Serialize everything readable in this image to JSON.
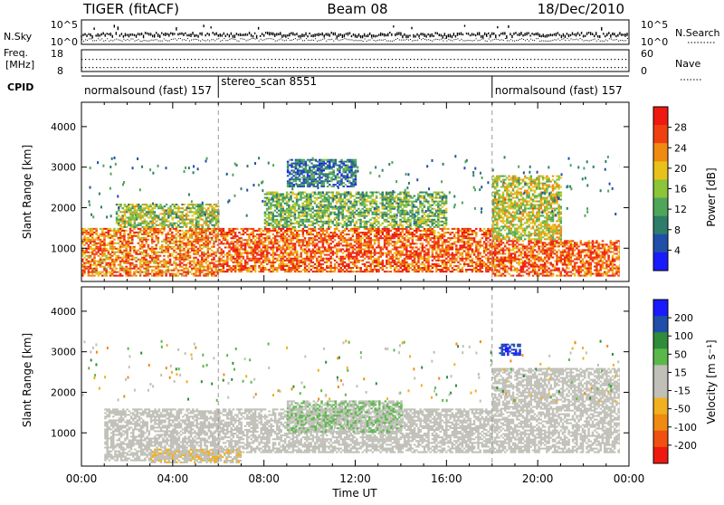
{
  "header": {
    "title": "TIGER (fitACF)",
    "beam": "Beam 08",
    "date": "18/Dec/2010"
  },
  "summary_panels": {
    "nsky_label": "N.Sky",
    "nsky_ticks": [
      "10^5",
      "10^0"
    ],
    "nsearch_label": "N.Search",
    "freq_label_1": "Freq.",
    "freq_label_2": "[MHz]",
    "freq_ticks": [
      "18",
      "8"
    ],
    "nave_label": "Nave",
    "nave_ticks": [
      "60",
      "0"
    ],
    "cpid_label": "CPID"
  },
  "cpid_segments": [
    {
      "label": "normalsound (fast) 157",
      "start_hour": 0,
      "end_hour": 6
    },
    {
      "label": "stereo_scan 8551",
      "start_hour": 6,
      "end_hour": 18
    },
    {
      "label": "normalsound (fast) 157",
      "start_hour": 18,
      "end_hour": 24
    }
  ],
  "chart_data": [
    {
      "type": "heatmap",
      "title": "",
      "xlabel": "Time UT",
      "ylabel": "Slant Range [km]",
      "x_ticks": [
        "00:00",
        "04:00",
        "08:00",
        "12:00",
        "16:00",
        "20:00",
        "00:00"
      ],
      "x_range_hours": [
        0,
        24
      ],
      "y_ticks": [
        1000,
        2000,
        3000,
        4000
      ],
      "ylim": [
        180,
        4600
      ],
      "colorbar": {
        "label": "Power [dB]",
        "ticks": [
          4,
          8,
          12,
          16,
          20,
          24,
          28
        ],
        "range": [
          0,
          32
        ],
        "colors": [
          "#1a1aff",
          "#1f4fa8",
          "#2e7d6b",
          "#4fa65a",
          "#8cc43a",
          "#e8c21a",
          "#f08a10",
          "#f04010",
          "#ee1a10"
        ]
      },
      "echo_bands": [
        {
          "start_hour": 0.0,
          "end_hour": 6.0,
          "range_low": 300,
          "range_high": 1500,
          "mean_value": 24
        },
        {
          "start_hour": 1.5,
          "end_hour": 6.0,
          "range_low": 1500,
          "range_high": 2100,
          "mean_value": 16
        },
        {
          "start_hour": 6.0,
          "end_hour": 18.0,
          "range_low": 400,
          "range_high": 1500,
          "mean_value": 26
        },
        {
          "start_hour": 8.0,
          "end_hour": 16.0,
          "range_low": 1500,
          "range_high": 2400,
          "mean_value": 14
        },
        {
          "start_hour": 9.0,
          "end_hour": 12.0,
          "range_low": 2500,
          "range_high": 3200,
          "mean_value": 8
        },
        {
          "start_hour": 18.0,
          "end_hour": 24.0,
          "range_low": 300,
          "range_high": 1200,
          "mean_value": 26
        },
        {
          "start_hour": 18.0,
          "end_hour": 21.0,
          "range_low": 1200,
          "range_high": 2800,
          "mean_value": 18
        }
      ]
    },
    {
      "type": "heatmap",
      "title": "",
      "xlabel": "Time UT",
      "ylabel": "Slant Range [km]",
      "x_ticks": [
        "00:00",
        "04:00",
        "08:00",
        "12:00",
        "16:00",
        "20:00",
        "00:00"
      ],
      "x_range_hours": [
        0,
        24
      ],
      "y_ticks": [
        1000,
        2000,
        3000,
        4000
      ],
      "ylim": [
        180,
        4600
      ],
      "colorbar": {
        "label": "Velocity [m s⁻¹]",
        "ticks": [
          200,
          100,
          50,
          15,
          -15,
          -50,
          -100,
          -200
        ],
        "range": [
          -250,
          250
        ],
        "colors": [
          "#ee1a10",
          "#f05010",
          "#f08a10",
          "#f0b020",
          "#c0c0b8",
          "#c0c0b8",
          "#5ab84a",
          "#2e8c3a",
          "#1f4fa8",
          "#1a1aff"
        ]
      },
      "echo_bands": [
        {
          "start_hour": 1.0,
          "end_hour": 6.0,
          "range_low": 300,
          "range_high": 1600,
          "mean_value": 0
        },
        {
          "start_hour": 6.0,
          "end_hour": 18.0,
          "range_low": 500,
          "range_high": 1600,
          "mean_value": 0
        },
        {
          "start_hour": 9.0,
          "end_hour": 14.0,
          "range_low": 1000,
          "range_high": 1800,
          "mean_value": 40
        },
        {
          "start_hour": 3.0,
          "end_hour": 7.0,
          "range_low": 250,
          "range_high": 600,
          "mean_value": -40
        },
        {
          "start_hour": 18.0,
          "end_hour": 24.0,
          "range_low": 500,
          "range_high": 2600,
          "mean_value": 0
        },
        {
          "start_hour": 18.3,
          "end_hour": 19.2,
          "range_low": 2900,
          "range_high": 3200,
          "mean_value": 200
        }
      ]
    }
  ]
}
